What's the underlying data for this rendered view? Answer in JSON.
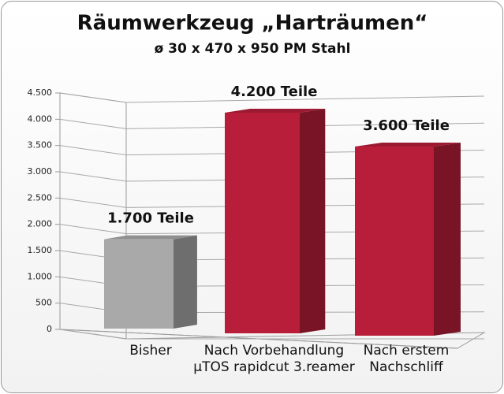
{
  "chart_data": {
    "type": "bar3d",
    "title": "Räumwerkzeug „Harträumen“",
    "subtitle": "ø 30 x 470 x 950 PM Stahl",
    "categories": [
      "Bisher",
      "Nach Vorbehandlung\nµTOS rapidcut 3.reamer",
      "Nach erstem\nNachschliff"
    ],
    "values": [
      1700,
      4200,
      3600
    ],
    "value_labels": [
      "1.700 Teile",
      "4.200 Teile",
      "3.600 Teile"
    ],
    "colors": [
      "#a9a9a9",
      "#b81e3a",
      "#b81e3a"
    ],
    "ylim": [
      0,
      4500
    ],
    "yticks": [
      0,
      500,
      {
        "value": 1000,
        "label": "1.000"
      },
      {
        "value": 1500,
        "label": "1.500"
      },
      {
        "value": 2000,
        "label": "2.000"
      },
      {
        "value": 2500,
        "label": "2.500"
      },
      {
        "value": 3000,
        "label": "3.000"
      },
      {
        "value": 3500,
        "label": "3.500"
      },
      {
        "value": 4000,
        "label": "4.000"
      },
      {
        "value": 4500,
        "label": "4.500"
      }
    ],
    "grid": true
  }
}
